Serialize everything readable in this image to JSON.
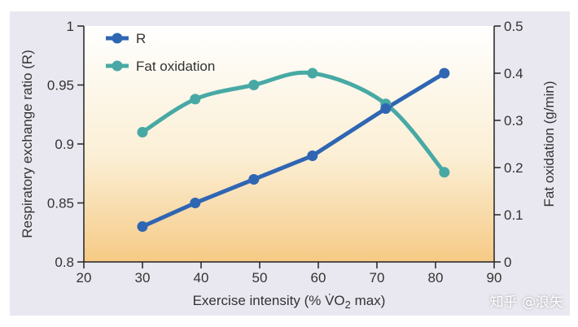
{
  "chart_data": {
    "type": "line",
    "x": [
      30,
      39,
      49,
      59,
      71.5,
      81.5
    ],
    "series": [
      {
        "name": "R",
        "axis": "left",
        "color": "#2f66b3",
        "marker": "circle",
        "values": [
          0.83,
          0.85,
          0.87,
          0.89,
          0.93,
          0.96
        ]
      },
      {
        "name": "Fat oxidation",
        "axis": "right",
        "color": "#48a9a4",
        "marker": "circle",
        "values": [
          0.275,
          0.345,
          0.375,
          0.4,
          0.335,
          0.19
        ]
      }
    ],
    "xlabel_main": "Exercise intensity (% ",
    "xlabel_vo": "V̇O",
    "xlabel_sub": "2",
    "xlabel_end": " max)",
    "ylabel_left": "Respiratory exchange ratio (R)",
    "ylabel_right": "Fat oxidation (g/min)",
    "xlim": [
      20,
      90
    ],
    "ylim_left": [
      0.8,
      1.0
    ],
    "ylim_right": [
      0,
      0.5
    ],
    "x_ticks": [
      "20",
      "30",
      "40",
      "50",
      "60",
      "70",
      "80",
      "90"
    ],
    "y_left_ticks": [
      "0.8",
      "0.85",
      "0.9",
      "0.95",
      "1"
    ],
    "y_right_ticks": [
      "0",
      "0.1",
      "0.2",
      "0.3",
      "0.4",
      "0.5"
    ],
    "legend": [
      "R",
      "Fat oxidation"
    ]
  },
  "watermark": "知乎 @浪矢"
}
